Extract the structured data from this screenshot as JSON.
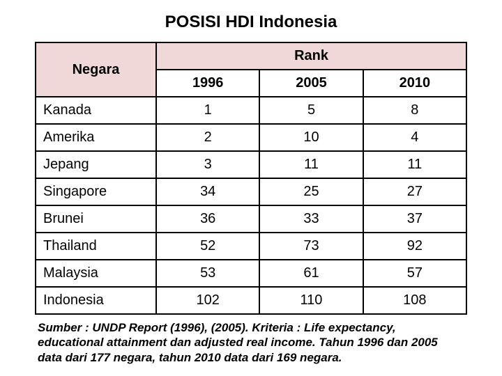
{
  "title": "POSISI HDI Indonesia",
  "header": {
    "negara": "Negara",
    "rank": "Rank",
    "years": [
      "1996",
      "2005",
      "2010"
    ]
  },
  "rows": [
    {
      "country": "Kanada",
      "vals": [
        "1",
        "5",
        "8"
      ]
    },
    {
      "country": "Amerika",
      "vals": [
        "2",
        "10",
        "4"
      ]
    },
    {
      "country": "Jepang",
      "vals": [
        "3",
        "11",
        "11"
      ]
    },
    {
      "country": "Singapore",
      "vals": [
        "34",
        "25",
        "27"
      ]
    },
    {
      "country": "Brunei",
      "vals": [
        "36",
        "33",
        "37"
      ]
    },
    {
      "country": "Thailand",
      "vals": [
        "52",
        "73",
        "92"
      ]
    },
    {
      "country": "Malaysia",
      "vals": [
        "53",
        "61",
        "57"
      ]
    },
    {
      "country": "Indonesia",
      "vals": [
        "102",
        "110",
        "108"
      ]
    }
  ],
  "footnote": "Sumber : UNDP Report (1996), (2005). Kriteria : Life expectancy, educational attainment dan adjusted real income. Tahun 1996 dan 2005 data dari 177 negara, tahun 2010 data dari 169 negara.",
  "colors": {
    "header_bg": "#f0d8d8",
    "border": "#000000",
    "background": "#ffffff"
  }
}
